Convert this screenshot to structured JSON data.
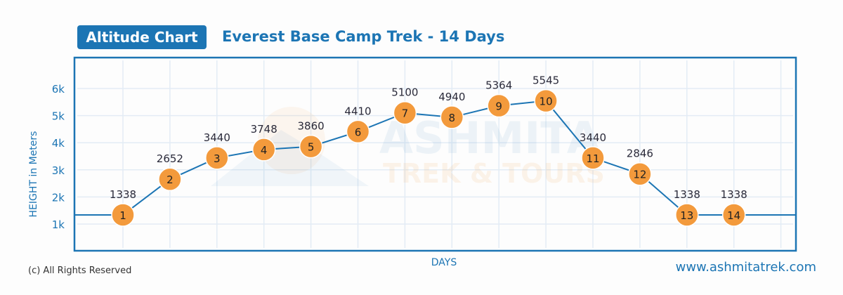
{
  "header": {
    "badge": "Altitude Chart",
    "title": "Everest Base Camp Trek - 14 Days"
  },
  "footer": {
    "copyright": "(c) All Rights Reserved",
    "website": "www.ashmitatrek.com"
  },
  "watermark": {
    "line1": "ASHMITA",
    "line2": "TREK & TOURS"
  },
  "colors": {
    "primary": "#1c75b4",
    "marker": "#f39a3c",
    "grid": "#e3ecf5"
  },
  "chart_data": {
    "type": "line",
    "title": "Everest Base Camp Trek - 14 Days",
    "xlabel": "DAYS",
    "ylabel": "HEIGHT in Meters",
    "x": [
      1,
      2,
      3,
      4,
      5,
      6,
      7,
      8,
      9,
      10,
      11,
      12,
      13,
      14
    ],
    "values": [
      1338,
      2652,
      3440,
      3748,
      3860,
      4410,
      5100,
      4940,
      5364,
      5545,
      3440,
      2846,
      1338,
      1338
    ],
    "yticks": [
      1000,
      2000,
      3000,
      4000,
      5000,
      6000
    ],
    "ytick_labels": [
      "1k",
      "2k",
      "3k",
      "4k",
      "5k",
      "6k"
    ],
    "grid": true,
    "legend": "none"
  }
}
